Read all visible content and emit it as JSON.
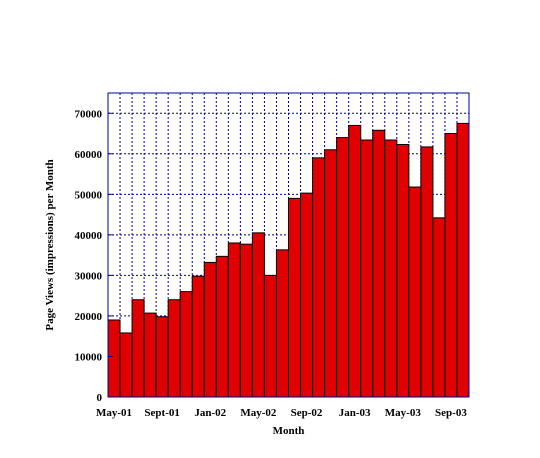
{
  "chart_data": {
    "type": "bar",
    "title": "",
    "xlabel": "Month",
    "ylabel": "Page Views (impressions) per Month",
    "ylim": [
      0,
      75000
    ],
    "yticks": [
      0,
      10000,
      20000,
      30000,
      40000,
      50000,
      60000,
      70000
    ],
    "grid": true,
    "legend": "none",
    "colors": {
      "bar_fill": "#e00000",
      "bar_stroke": "#000000",
      "frame": "#0000a0",
      "grid": "#0000a0"
    },
    "categories": [
      "May-01",
      "Jun-01",
      "Jul-01",
      "Aug-01",
      "Sept-01",
      "Oct-01",
      "Nov-01",
      "Dec-01",
      "Jan-02",
      "Feb-02",
      "Mar-02",
      "Apr-02",
      "May-02",
      "Jun-02",
      "Jul-02",
      "Aug-02",
      "Sep-02",
      "Oct-02",
      "Nov-02",
      "Dec-02",
      "Jan-03",
      "Feb-03",
      "Mar-03",
      "Apr-03",
      "May-03",
      "Jun-03",
      "Jul-03",
      "Aug-03",
      "Sep-03",
      "Oct-03"
    ],
    "tick_labels": [
      {
        "index": 0,
        "text": "May-01"
      },
      {
        "index": 4,
        "text": "Sept-01"
      },
      {
        "index": 8,
        "text": "Jan-02"
      },
      {
        "index": 12,
        "text": "May-02"
      },
      {
        "index": 16,
        "text": "Sep-02"
      },
      {
        "index": 20,
        "text": "Jan-03"
      },
      {
        "index": 24,
        "text": "May-03"
      },
      {
        "index": 28,
        "text": "Sep-03"
      }
    ],
    "values": [
      19000,
      15800,
      24000,
      20700,
      19800,
      24000,
      26000,
      29800,
      33200,
      34700,
      38000,
      37700,
      40500,
      30000,
      36300,
      49000,
      50300,
      59000,
      61000,
      64000,
      67000,
      63400,
      65800,
      63400,
      62300,
      51800,
      61700,
      44200,
      65000,
      67500
    ]
  }
}
